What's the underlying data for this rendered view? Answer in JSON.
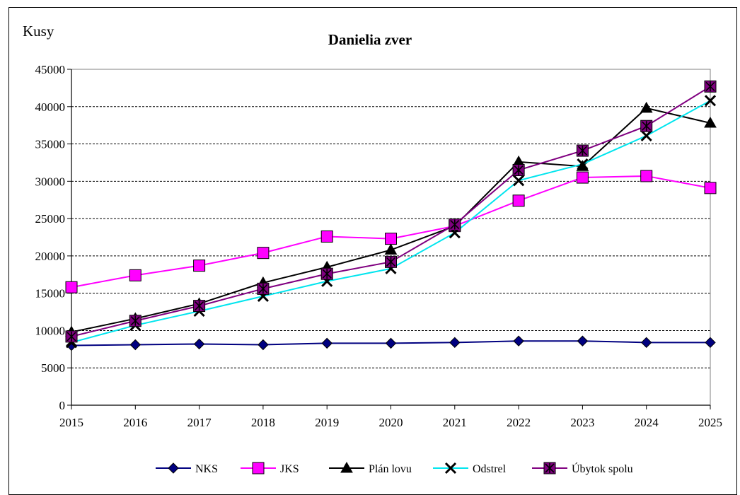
{
  "chart_data": {
    "type": "line",
    "title": "Danielia zver",
    "ylabel": "Kusy",
    "xlabel": "",
    "ylim": [
      0,
      45000
    ],
    "y_ticks": [
      "0",
      "5000",
      "10000",
      "15000",
      "20000",
      "25000",
      "30000",
      "35000",
      "40000",
      "45000"
    ],
    "grid": "horizontal dashed",
    "legend_position": "bottom",
    "categories": [
      "2015",
      "2016",
      "2017",
      "2018",
      "2019",
      "2020",
      "2021",
      "2022",
      "2023",
      "2024",
      "2025"
    ],
    "series": [
      {
        "name": "NKS",
        "color": "#000080",
        "marker": "diamond",
        "values": [
          8000,
          8100,
          8200,
          8100,
          8300,
          8300,
          8400,
          8600,
          8600,
          8400,
          8400
        ]
      },
      {
        "name": "JKS",
        "color": "#ff00ff",
        "marker": "square",
        "values": [
          15800,
          17400,
          18700,
          20400,
          22600,
          22300,
          24000,
          27400,
          30500,
          30700,
          29100
        ]
      },
      {
        "name": "Plán lovu",
        "color": "#000000",
        "marker": "triangle",
        "values": [
          9800,
          11600,
          13600,
          16400,
          18500,
          20800,
          24000,
          32600,
          32000,
          39800,
          37800
        ]
      },
      {
        "name": "Odstrel",
        "color": "#00e5ee",
        "marker": "x",
        "values": [
          8400,
          10700,
          12600,
          14600,
          16600,
          18300,
          23100,
          30100,
          32300,
          36100,
          40800
        ]
      },
      {
        "name": "Úbytok spolu",
        "color": "#800080",
        "marker": "star",
        "values": [
          9200,
          11300,
          13300,
          15600,
          17600,
          19200,
          24200,
          31500,
          34100,
          37400,
          42700
        ]
      }
    ]
  }
}
